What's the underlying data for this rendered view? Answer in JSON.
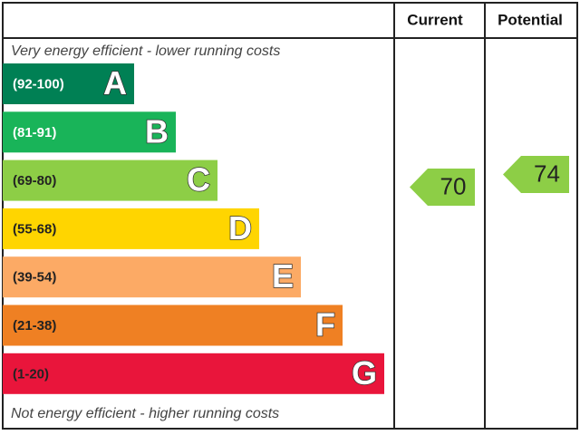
{
  "header": {
    "current": "Current",
    "potential": "Potential"
  },
  "top_note": "Very energy efficient - lower running costs",
  "bottom_note": "Not energy efficient - higher running costs",
  "bands": [
    {
      "range": "(92-100)",
      "letter": "A",
      "color": "#008054"
    },
    {
      "range": "(81-91)",
      "letter": "B",
      "color": "#19b459"
    },
    {
      "range": "(69-80)",
      "letter": "C",
      "color": "#8dce46"
    },
    {
      "range": "(55-68)",
      "letter": "D",
      "color": "#ffd500"
    },
    {
      "range": "(39-54)",
      "letter": "E",
      "color": "#fcaa65"
    },
    {
      "range": "(21-38)",
      "letter": "F",
      "color": "#ef8023"
    },
    {
      "range": "(1-20)",
      "letter": "G",
      "color": "#e9153b"
    }
  ],
  "current": {
    "value": 70,
    "color": "#8dce46"
  },
  "potential": {
    "value": 74,
    "color": "#8dce46"
  }
}
